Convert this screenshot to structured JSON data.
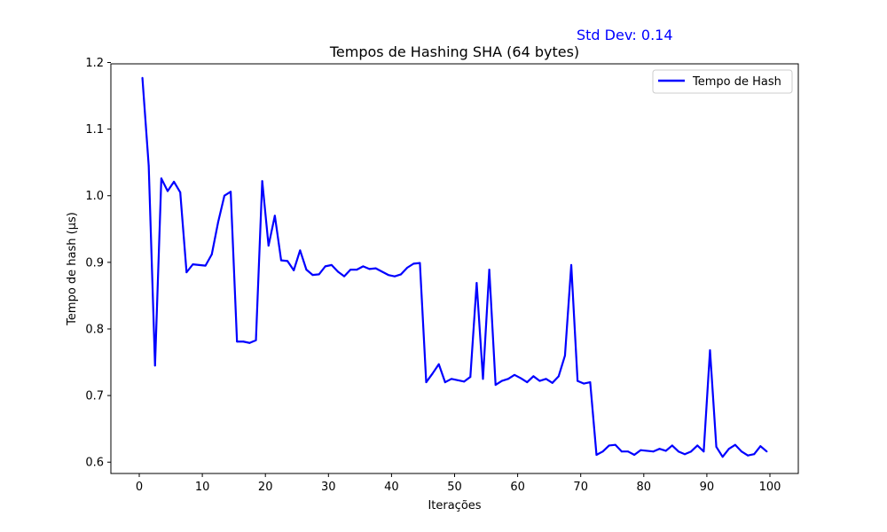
{
  "chart_data": {
    "type": "line",
    "title": "Tempos de Hashing SHA (64 bytes)",
    "annotation": {
      "text": "Std Dev: 0.14",
      "color": "#0000ff"
    },
    "xlabel": "Iterações",
    "ylabel": "Tempo de hash (µs)",
    "xlim": [
      -4.5,
      104.5
    ],
    "ylim": [
      0.583,
      1.198
    ],
    "xticks": [
      0,
      10,
      20,
      30,
      40,
      50,
      60,
      70,
      80,
      90,
      100
    ],
    "yticks": [
      0.6,
      0.7,
      0.8,
      0.9,
      1.0,
      1.1,
      1.2
    ],
    "ytick_labels": [
      "0.6",
      "0.7",
      "0.8",
      "0.9",
      "1.0",
      "1.1",
      "1.2"
    ],
    "grid": false,
    "legend": {
      "position": "top-right"
    },
    "series": [
      {
        "name": "Tempo de Hash",
        "color": "#0000ff",
        "x": [
          0.5,
          1.5,
          2.5,
          3.5,
          4.5,
          5.5,
          6.5,
          7.5,
          8.5,
          9.5,
          10.5,
          11.5,
          12.5,
          13.5,
          14.5,
          15.5,
          16.5,
          17.5,
          18.5,
          19.5,
          20.5,
          21.5,
          22.5,
          23.5,
          24.5,
          25.5,
          26.5,
          27.5,
          28.5,
          29.5,
          30.5,
          31.5,
          32.5,
          33.5,
          34.5,
          35.5,
          36.5,
          37.5,
          38.5,
          39.5,
          40.5,
          41.5,
          42.5,
          43.5,
          44.5,
          45.5,
          46.5,
          47.5,
          48.5,
          49.5,
          50.5,
          51.5,
          52.5,
          53.5,
          54.5,
          55.5,
          56.5,
          57.5,
          58.5,
          59.5,
          60.5,
          61.5,
          62.5,
          63.5,
          64.5,
          65.5,
          66.5,
          67.5,
          68.5,
          69.5,
          70.5,
          71.5,
          72.5,
          73.5,
          74.5,
          75.5,
          76.5,
          77.5,
          78.5,
          79.5,
          80.5,
          81.5,
          82.5,
          83.5,
          84.5,
          85.5,
          86.5,
          87.5,
          88.5,
          89.5,
          90.5,
          91.5,
          92.5,
          93.5,
          94.5,
          95.5,
          96.5,
          97.5,
          98.5,
          99.5
        ],
        "values": [
          1.177,
          1.045,
          0.745,
          1.026,
          1.007,
          1.021,
          1.005,
          0.885,
          0.897,
          0.896,
          0.895,
          0.912,
          0.96,
          1.0,
          1.006,
          0.781,
          0.781,
          0.779,
          0.783,
          1.022,
          0.925,
          0.97,
          0.903,
          0.902,
          0.888,
          0.918,
          0.889,
          0.881,
          0.882,
          0.894,
          0.896,
          0.886,
          0.879,
          0.889,
          0.889,
          0.894,
          0.89,
          0.891,
          0.886,
          0.881,
          0.879,
          0.882,
          0.892,
          0.898,
          0.899,
          0.72,
          0.733,
          0.747,
          0.72,
          0.725,
          0.723,
          0.721,
          0.728,
          0.869,
          0.725,
          0.889,
          0.716,
          0.722,
          0.725,
          0.731,
          0.726,
          0.72,
          0.729,
          0.722,
          0.725,
          0.719,
          0.729,
          0.76,
          0.896,
          0.722,
          0.718,
          0.72,
          0.611,
          0.616,
          0.625,
          0.626,
          0.616,
          0.616,
          0.611,
          0.618,
          0.617,
          0.616,
          0.62,
          0.617,
          0.625,
          0.616,
          0.612,
          0.616,
          0.625,
          0.616,
          0.768,
          0.623,
          0.608,
          0.62,
          0.626,
          0.616,
          0.61,
          0.612,
          0.624,
          0.616
        ]
      }
    ]
  }
}
